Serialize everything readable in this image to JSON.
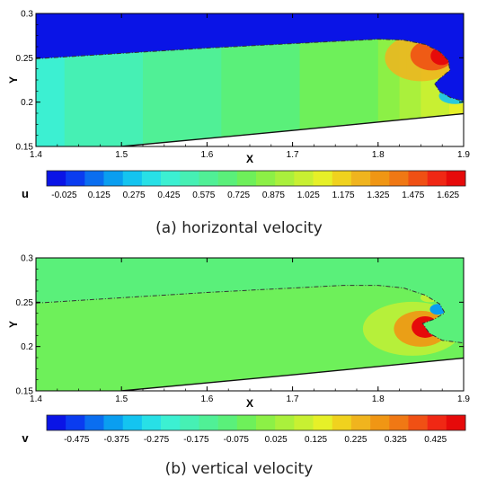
{
  "chart_data": [
    {
      "type": "heatmap",
      "caption": "(a) horizontal velocity",
      "xlabel": "X",
      "ylabel": "Y",
      "xlim": [
        1.4,
        1.9
      ],
      "ylim": [
        0.15,
        0.3
      ],
      "x_ticks": [
        "1.4",
        "1.5",
        "1.6",
        "1.7",
        "1.8",
        "1.9"
      ],
      "y_ticks": [
        "0.15",
        "0.2",
        "0.25",
        "0.3"
      ],
      "colorbar": {
        "variable": "u",
        "min": -0.1,
        "max": 1.7,
        "labels": [
          "-0.025",
          "0.125",
          "0.275",
          "0.425",
          "0.575",
          "0.725",
          "0.875",
          "1.025",
          "1.175",
          "1.325",
          "1.475",
          "1.625"
        ]
      },
      "free_surface": [
        [
          1.4,
          0.249
        ],
        [
          1.5,
          0.255
        ],
        [
          1.6,
          0.261
        ],
        [
          1.7,
          0.266
        ],
        [
          1.76,
          0.269
        ],
        [
          1.8,
          0.271
        ],
        [
          1.83,
          0.27
        ],
        [
          1.855,
          0.265
        ],
        [
          1.872,
          0.257
        ],
        [
          1.882,
          0.247
        ],
        [
          1.884,
          0.236
        ],
        [
          1.874,
          0.228
        ],
        [
          1.866,
          0.221
        ],
        [
          1.872,
          0.212
        ],
        [
          1.885,
          0.205
        ],
        [
          1.9,
          0.201
        ]
      ],
      "bottom": [
        [
          1.5,
          0.15
        ],
        [
          1.7,
          0.168
        ],
        [
          1.9,
          0.187
        ]
      ]
    },
    {
      "type": "heatmap",
      "caption": "(b) vertical velocity",
      "xlabel": "X",
      "ylabel": "Y",
      "xlim": [
        1.4,
        1.9
      ],
      "ylim": [
        0.15,
        0.3
      ],
      "x_ticks": [
        "1.4",
        "1.5",
        "1.6",
        "1.7",
        "1.8",
        "1.9"
      ],
      "y_ticks": [
        "0.15",
        "0.2",
        "0.25",
        "0.3"
      ],
      "colorbar": {
        "variable": "v",
        "min": -0.55,
        "max": 0.5,
        "labels": [
          "-0.475",
          "-0.375",
          "-0.275",
          "-0.175",
          "-0.075",
          "0.025",
          "0.125",
          "0.225",
          "0.325",
          "0.425"
        ]
      },
      "free_surface": [
        [
          1.4,
          0.249
        ],
        [
          1.5,
          0.255
        ],
        [
          1.6,
          0.261
        ],
        [
          1.7,
          0.266
        ],
        [
          1.76,
          0.269
        ],
        [
          1.8,
          0.269
        ],
        [
          1.83,
          0.266
        ],
        [
          1.855,
          0.258
        ],
        [
          1.872,
          0.248
        ],
        [
          1.878,
          0.238
        ],
        [
          1.866,
          0.231
        ],
        [
          1.852,
          0.226
        ],
        [
          1.86,
          0.215
        ],
        [
          1.875,
          0.207
        ],
        [
          1.9,
          0.204
        ]
      ],
      "bottom": [
        [
          1.5,
          0.15
        ],
        [
          1.7,
          0.168
        ],
        [
          1.9,
          0.187
        ]
      ]
    }
  ]
}
